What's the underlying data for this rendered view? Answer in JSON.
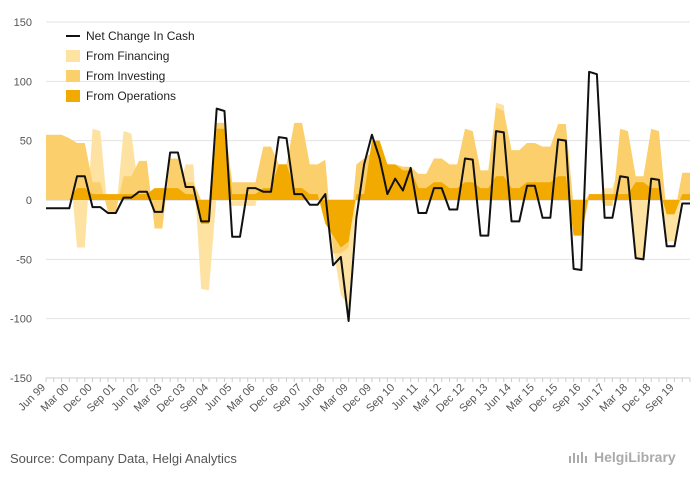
{
  "chart_data": {
    "type": "area",
    "y_ticks": [
      150,
      100,
      50,
      0,
      -50,
      -100,
      -150
    ],
    "ylim": [
      -150,
      150
    ],
    "grid": true,
    "legend_position": "top-left",
    "x_tick_labels": [
      "Jun 99",
      "Mar 00",
      "Dec 00",
      "Sep 01",
      "Jun 02",
      "Mar 03",
      "Dec 03",
      "Sep 04",
      "Jun 05",
      "Mar 06",
      "Dec 06",
      "Sep 07",
      "Jun 08",
      "Mar 09",
      "Dec 09",
      "Sep 10",
      "Jun 11",
      "Mar 12",
      "Dec 12",
      "Sep 13",
      "Jun 14",
      "Mar 15",
      "Dec 15",
      "Sep 16",
      "Jun 17",
      "Mar 18",
      "Dec 18",
      "Sep 19"
    ],
    "x_tick_positions": [
      0,
      3,
      6,
      9,
      12,
      15,
      18,
      21,
      24,
      27,
      30,
      33,
      36,
      39,
      42,
      45,
      48,
      51,
      54,
      57,
      60,
      63,
      66,
      69,
      72,
      75,
      78,
      81
    ],
    "x_count": 84,
    "series": [
      {
        "name": "Net Change In Cash",
        "kind": "line",
        "color": "#111111",
        "values": [
          -7,
          -7,
          -7,
          -7,
          20,
          20,
          -6,
          -6,
          -11,
          -11,
          2,
          2,
          7,
          7,
          -10,
          -10,
          40,
          40,
          11,
          11,
          -18,
          -18,
          77,
          75,
          -31,
          -31,
          10,
          10,
          7,
          7,
          53,
          52,
          5,
          5,
          -4,
          -4,
          5,
          -55,
          -48,
          -102,
          -15,
          30,
          55,
          35,
          5,
          18,
          8,
          27,
          -11,
          -11,
          10,
          10,
          -8,
          -8,
          35,
          34,
          -30,
          -30,
          58,
          57,
          -18,
          -18,
          12,
          12,
          -15,
          -15,
          51,
          50,
          -58,
          -59,
          108,
          106,
          -15,
          -15,
          20,
          19,
          -49,
          -50,
          18,
          17,
          -39,
          -39,
          -3,
          -3
        ]
      },
      {
        "name": "From Financing",
        "kind": "area",
        "color": "#fde2a2",
        "values": [
          35,
          35,
          35,
          35,
          -40,
          -40,
          60,
          58,
          -12,
          -12,
          58,
          56,
          5,
          5,
          10,
          10,
          8,
          8,
          30,
          30,
          -75,
          -76,
          5,
          5,
          -5,
          -5,
          -5,
          -5,
          30,
          30,
          30,
          30,
          55,
          55,
          15,
          15,
          0,
          -40,
          -80,
          -90,
          0,
          18,
          30,
          30,
          20,
          20,
          10,
          10,
          5,
          5,
          20,
          20,
          10,
          10,
          55,
          45,
          10,
          10,
          82,
          80,
          10,
          10,
          45,
          45,
          45,
          45,
          55,
          50,
          -30,
          -30,
          0,
          0,
          10,
          10,
          30,
          30,
          -50,
          -50,
          10,
          10,
          -35,
          -35,
          5,
          5
        ]
      },
      {
        "name": "From Investing",
        "kind": "area",
        "color": "#fbcf6b",
        "values": [
          55,
          55,
          55,
          52,
          48,
          48,
          15,
          15,
          -10,
          -10,
          20,
          20,
          33,
          33,
          -24,
          -24,
          35,
          35,
          15,
          15,
          0,
          0,
          65,
          65,
          15,
          15,
          15,
          15,
          45,
          45,
          30,
          30,
          65,
          65,
          30,
          30,
          34,
          -45,
          -45,
          -40,
          30,
          35,
          40,
          40,
          30,
          30,
          28,
          28,
          22,
          22,
          35,
          35,
          30,
          30,
          60,
          58,
          25,
          25,
          78,
          75,
          42,
          42,
          48,
          48,
          45,
          45,
          64,
          64,
          -5,
          -5,
          5,
          5,
          -5,
          -5,
          60,
          58,
          20,
          20,
          60,
          58,
          -12,
          -12,
          23,
          23
        ]
      },
      {
        "name": "From Operations",
        "kind": "area",
        "color": "#f2a900",
        "values": [
          0,
          0,
          0,
          0,
          10,
          10,
          5,
          5,
          5,
          5,
          5,
          5,
          5,
          5,
          10,
          10,
          10,
          10,
          5,
          5,
          -20,
          -20,
          60,
          60,
          5,
          5,
          5,
          5,
          10,
          10,
          30,
          30,
          10,
          10,
          5,
          5,
          -20,
          -30,
          -40,
          -35,
          5,
          5,
          50,
          50,
          30,
          30,
          25,
          25,
          10,
          10,
          15,
          15,
          10,
          10,
          15,
          15,
          10,
          10,
          20,
          20,
          10,
          10,
          15,
          15,
          15,
          15,
          20,
          20,
          -30,
          -30,
          5,
          5,
          5,
          5,
          5,
          5,
          15,
          15,
          10,
          10,
          -12,
          -12,
          5,
          5
        ]
      }
    ]
  },
  "footer": {
    "source": "Source: Company Data, Helgi Analytics",
    "brand": "HelgiLibrary"
  }
}
